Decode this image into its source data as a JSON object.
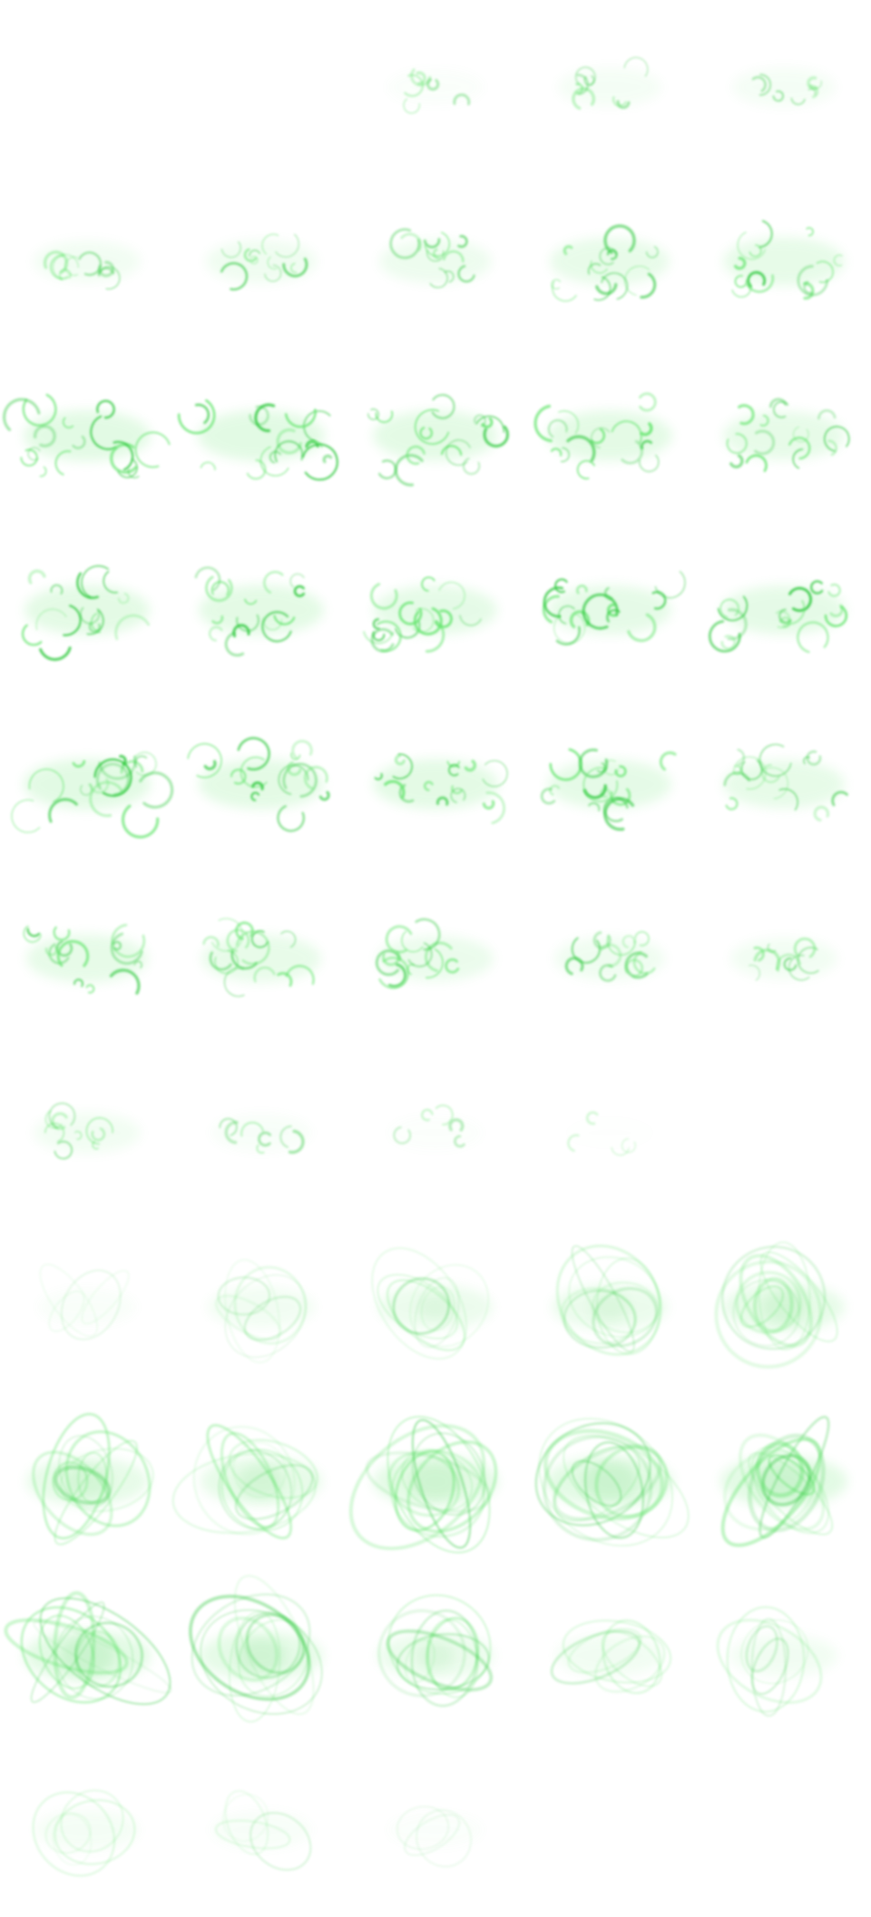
{
  "sprite_sheet": {
    "columns": 5,
    "rows": 11,
    "background_color": "#ffffff",
    "effect_color": "#66e66f",
    "effect_color_dark": "#2fc93c",
    "sections": [
      {
        "name": "swirl-burst",
        "frame_count": 35,
        "intensity": [
          0.0,
          0.0,
          0.15,
          0.35,
          0.35,
          0.45,
          0.55,
          0.6,
          0.8,
          0.85,
          1.0,
          1.0,
          0.95,
          0.95,
          0.85,
          0.95,
          0.95,
          0.9,
          0.9,
          0.9,
          1.0,
          0.95,
          0.95,
          0.9,
          0.85,
          0.85,
          0.8,
          0.7,
          0.55,
          0.45,
          0.45,
          0.25,
          0.1,
          0.02,
          0.0
        ]
      },
      {
        "name": "ring-vortex",
        "frame_count": 20,
        "intensity": [
          0.2,
          0.45,
          0.65,
          0.7,
          0.85,
          0.85,
          0.85,
          0.95,
          1.0,
          1.0,
          1.0,
          0.9,
          0.7,
          0.45,
          0.45,
          0.35,
          0.25,
          0.12,
          0.0,
          0.0
        ]
      }
    ]
  }
}
